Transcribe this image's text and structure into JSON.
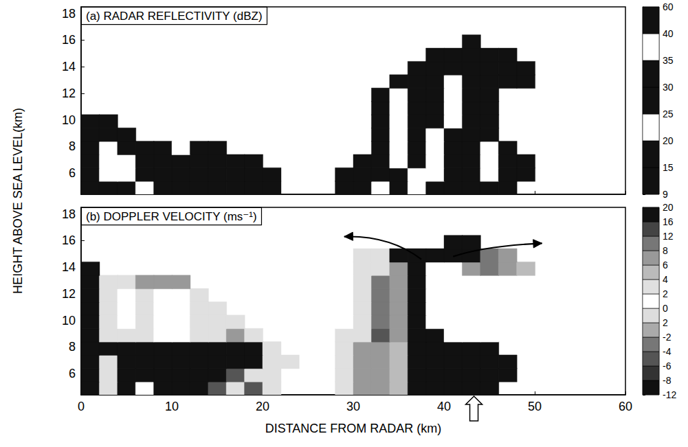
{
  "chart_data": [
    {
      "type": "heatmap",
      "title": "(a) RADAR REFLECTIVITY (dBZ)",
      "ylabel": "HEIGHT ABOVE SEA LEVEL(km)",
      "xlim": [
        0,
        60
      ],
      "xticks": [
        0,
        10,
        20,
        30,
        40,
        50,
        60
      ],
      "ylim": [
        4.4,
        18.5
      ],
      "yticks": [
        6,
        8,
        10,
        12,
        14,
        16,
        18
      ],
      "tick_labels": "y",
      "grid": false,
      "x": [
        1,
        3,
        5,
        7,
        9,
        11,
        13,
        15,
        17,
        19,
        21,
        23,
        25,
        27,
        29,
        31,
        33,
        35,
        37,
        39,
        41,
        43,
        45,
        47,
        49,
        51,
        53,
        55
      ],
      "y": [
        4.9,
        5.9,
        6.9,
        7.9,
        8.9,
        9.9,
        10.9,
        11.9,
        12.9,
        13.9,
        14.9,
        15.9
      ],
      "values": [
        [
          30,
          30,
          30,
          22,
          30,
          30,
          30,
          30,
          30,
          30,
          30,
          null,
          null,
          null,
          30,
          30,
          38,
          30,
          38,
          30,
          30,
          30,
          30,
          30,
          null,
          null,
          null,
          null
        ],
        [
          30,
          38,
          38,
          30,
          30,
          30,
          30,
          30,
          30,
          30,
          30,
          null,
          null,
          null,
          30,
          30,
          30,
          30,
          38,
          38,
          30,
          30,
          38,
          30,
          30,
          null,
          null,
          null
        ],
        [
          30,
          38,
          38,
          30,
          30,
          30,
          30,
          30,
          30,
          30,
          null,
          null,
          null,
          null,
          null,
          30,
          30,
          38,
          30,
          38,
          30,
          30,
          38,
          30,
          30,
          null,
          null,
          null
        ],
        [
          30,
          38,
          30,
          30,
          30,
          22,
          30,
          30,
          null,
          null,
          null,
          null,
          null,
          null,
          null,
          null,
          30,
          38,
          30,
          38,
          30,
          30,
          38,
          30,
          null,
          null,
          null,
          null
        ],
        [
          30,
          30,
          30,
          null,
          null,
          null,
          null,
          null,
          null,
          null,
          null,
          null,
          null,
          null,
          null,
          null,
          30,
          38,
          30,
          38,
          30,
          30,
          30,
          null,
          null,
          null,
          null,
          null
        ],
        [
          30,
          30,
          null,
          null,
          null,
          null,
          null,
          null,
          null,
          null,
          null,
          null,
          null,
          null,
          null,
          null,
          30,
          38,
          30,
          30,
          38,
          30,
          30,
          null,
          null,
          null,
          null,
          null
        ],
        [
          null,
          null,
          null,
          null,
          null,
          null,
          null,
          null,
          null,
          null,
          null,
          null,
          null,
          null,
          null,
          null,
          30,
          38,
          30,
          30,
          38,
          30,
          30,
          null,
          null,
          null,
          null,
          null
        ],
        [
          null,
          null,
          null,
          null,
          null,
          null,
          null,
          null,
          null,
          null,
          null,
          null,
          null,
          null,
          null,
          null,
          30,
          38,
          30,
          30,
          38,
          30,
          30,
          null,
          null,
          null,
          null,
          null
        ],
        [
          null,
          null,
          null,
          null,
          null,
          null,
          null,
          null,
          null,
          null,
          null,
          null,
          null,
          null,
          null,
          null,
          null,
          30,
          30,
          30,
          38,
          30,
          30,
          30,
          30,
          null,
          null,
          null
        ],
        [
          null,
          null,
          null,
          null,
          null,
          null,
          null,
          null,
          null,
          null,
          null,
          null,
          null,
          null,
          null,
          null,
          null,
          null,
          30,
          30,
          30,
          30,
          30,
          30,
          30,
          null,
          null,
          null
        ],
        [
          null,
          null,
          null,
          null,
          null,
          null,
          null,
          null,
          null,
          null,
          null,
          null,
          null,
          null,
          null,
          null,
          null,
          null,
          null,
          30,
          30,
          30,
          30,
          30,
          null,
          null,
          null,
          null
        ],
        [
          null,
          null,
          null,
          null,
          null,
          null,
          null,
          null,
          null,
          null,
          null,
          null,
          null,
          null,
          null,
          null,
          null,
          null,
          null,
          null,
          null,
          30,
          null,
          null,
          null,
          null,
          null,
          null
        ]
      ],
      "colorbar": {
        "ticks": [
          9,
          15,
          20,
          25,
          30,
          35,
          40,
          60
        ],
        "colors": [
          "#111111",
          "#111111",
          "#ffffff",
          "#111111",
          "#111111",
          "#ffffff",
          "#111111"
        ]
      }
    },
    {
      "type": "heatmap",
      "title": "(b) DOPPLER VELOCITY (ms⁻¹)",
      "xlabel": "DISTANCE FROM RADAR (km)",
      "xlim": [
        0,
        60
      ],
      "xticks": [
        0,
        10,
        20,
        30,
        40,
        50,
        60
      ],
      "ylim": [
        4.4,
        18.5
      ],
      "yticks": [
        6,
        8,
        10,
        12,
        14,
        16,
        18
      ],
      "grid": false,
      "x": [
        1,
        3,
        5,
        7,
        9,
        11,
        13,
        15,
        17,
        19,
        21,
        23,
        25,
        27,
        29,
        31,
        33,
        35,
        37,
        39,
        41,
        43,
        45,
        47,
        49,
        51,
        53,
        55
      ],
      "y": [
        4.9,
        5.9,
        6.9,
        7.9,
        8.9,
        9.9,
        10.9,
        11.9,
        12.9,
        13.9,
        14.9,
        15.9
      ],
      "values": [
        [
          -10,
          3,
          -10,
          1,
          -10,
          -10,
          -10,
          -5,
          3,
          -5,
          3,
          null,
          null,
          null,
          3,
          7,
          7,
          5,
          -10,
          -10,
          -10,
          -10,
          -10,
          null,
          null,
          null,
          null,
          null
        ],
        [
          -10,
          3,
          -10,
          -10,
          -10,
          -10,
          -10,
          -10,
          -5,
          3,
          3,
          null,
          null,
          null,
          3,
          7,
          7,
          5,
          -10,
          -10,
          -10,
          -10,
          -10,
          -10,
          null,
          null,
          null,
          null
        ],
        [
          -10,
          3,
          -10,
          -10,
          -10,
          -10,
          -10,
          -10,
          -10,
          -10,
          3,
          3,
          null,
          null,
          3,
          7,
          7,
          5,
          -10,
          -10,
          -10,
          -10,
          -10,
          -10,
          null,
          null,
          null,
          null
        ],
        [
          -10,
          -10,
          -10,
          -10,
          -10,
          -10,
          -10,
          -10,
          -10,
          -10,
          3,
          null,
          null,
          null,
          3,
          7,
          7,
          5,
          -10,
          -10,
          -10,
          -10,
          -10,
          null,
          null,
          null,
          null,
          null
        ],
        [
          -10,
          3,
          3,
          3,
          1,
          1,
          3,
          3,
          7,
          3,
          null,
          null,
          null,
          null,
          3,
          3,
          -5,
          7,
          -10,
          -10,
          1,
          1,
          1,
          null,
          null,
          null,
          null,
          null
        ],
        [
          -10,
          3,
          1,
          3,
          1,
          1,
          3,
          3,
          3,
          null,
          null,
          null,
          null,
          null,
          1,
          3,
          10,
          7,
          -10,
          1,
          1,
          1,
          1,
          null,
          null,
          null,
          null,
          null
        ],
        [
          -10,
          3,
          1,
          3,
          1,
          1,
          3,
          3,
          null,
          null,
          null,
          null,
          null,
          null,
          1,
          3,
          10,
          7,
          -10,
          1,
          1,
          1,
          1,
          null,
          null,
          null,
          null,
          null
        ],
        [
          -10,
          3,
          1,
          3,
          1,
          1,
          3,
          null,
          null,
          null,
          null,
          null,
          null,
          null,
          1,
          3,
          10,
          7,
          -10,
          1,
          1,
          1,
          1,
          null,
          null,
          null,
          null,
          null
        ],
        [
          -10,
          3,
          3,
          7,
          7,
          7,
          null,
          null,
          null,
          null,
          null,
          null,
          null,
          null,
          1,
          3,
          10,
          7,
          -10,
          1,
          1,
          1,
          1,
          null,
          null,
          null,
          null,
          null
        ],
        [
          -10,
          null,
          null,
          null,
          null,
          null,
          null,
          null,
          null,
          null,
          null,
          null,
          null,
          null,
          1,
          3,
          3,
          7,
          -10,
          1,
          1,
          7,
          10,
          7,
          5,
          null,
          null,
          null
        ],
        [
          null,
          null,
          null,
          null,
          null,
          null,
          null,
          null,
          null,
          null,
          null,
          null,
          null,
          null,
          null,
          3,
          3,
          -10,
          -10,
          -10,
          -10,
          -10,
          10,
          7,
          null,
          null,
          null,
          null
        ],
        [
          null,
          null,
          null,
          null,
          null,
          null,
          null,
          null,
          null,
          null,
          null,
          null,
          null,
          null,
          null,
          null,
          null,
          null,
          null,
          null,
          -10,
          -10,
          null,
          null,
          null,
          null,
          null,
          null
        ]
      ],
      "colorbar": {
        "ticks": [
          -12,
          -8,
          -6,
          -4,
          -2,
          {
            "value": -1,
            "label": "2"
          },
          0,
          2,
          4,
          6,
          8,
          12,
          16,
          20
        ],
        "colors": [
          "#111111",
          "#333333",
          "#555555",
          "#777777",
          "#aaaaaa",
          "#dddddd",
          "#ffffff",
          "#e0e0e0",
          "#bbbbbb",
          "#999999",
          "#777777",
          "#444444",
          "#111111"
        ]
      }
    }
  ]
}
